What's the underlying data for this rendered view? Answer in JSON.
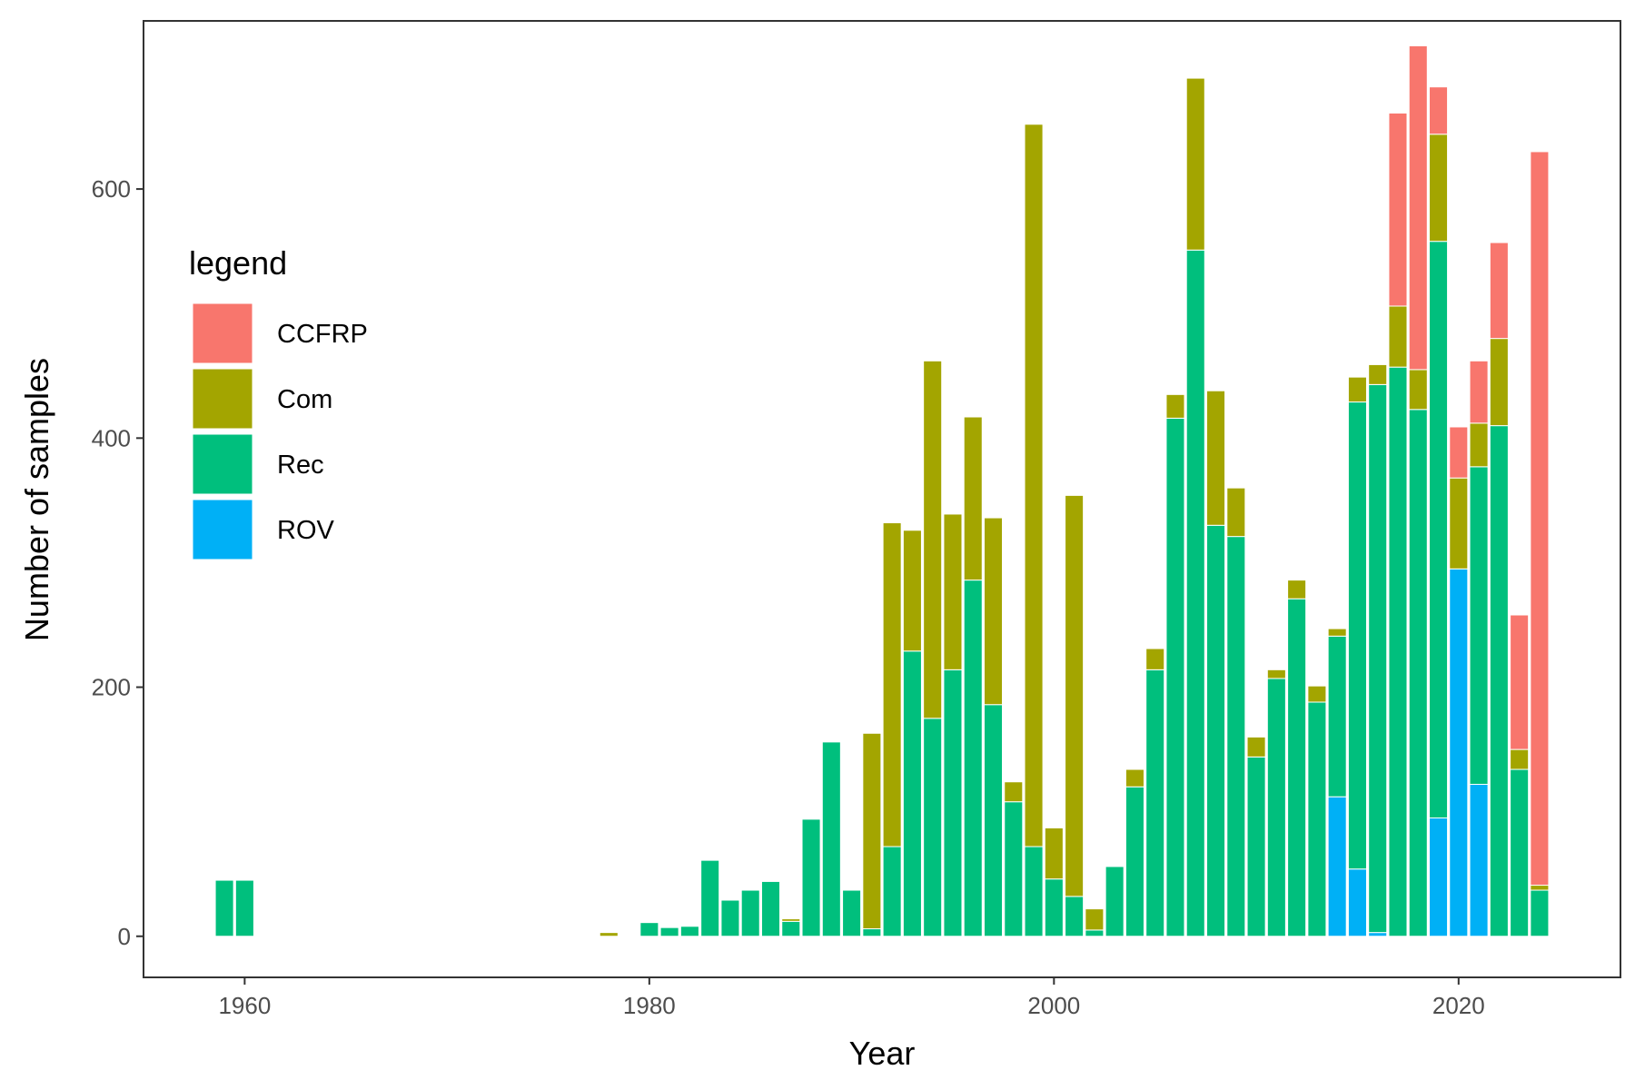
{
  "chart_data": {
    "type": "bar",
    "stacked": true,
    "xlabel": "Year",
    "ylabel": "Number of samples",
    "xlim": [
      1955,
      2028
    ],
    "ylim": [
      -33,
      735
    ],
    "x_ticks": [
      1960,
      1980,
      2000,
      2020
    ],
    "y_ticks": [
      0,
      200,
      400,
      600
    ],
    "grid": false,
    "legend": {
      "title": "legend",
      "position": "left-inside"
    },
    "series": [
      {
        "name": "ROV",
        "color": "#00B0F6",
        "points": [
          [
            2014,
            112
          ],
          [
            2015,
            54
          ],
          [
            2016,
            3
          ],
          [
            2019,
            95
          ],
          [
            2020,
            295
          ],
          [
            2021,
            122
          ]
        ]
      },
      {
        "name": "Rec",
        "color": "#00BF7D",
        "points": [
          [
            1959,
            45
          ],
          [
            1960,
            45
          ],
          [
            1980,
            11
          ],
          [
            1981,
            7
          ],
          [
            1982,
            8
          ],
          [
            1983,
            61
          ],
          [
            1984,
            29
          ],
          [
            1985,
            37
          ],
          [
            1986,
            44
          ],
          [
            1987,
            12
          ],
          [
            1988,
            94
          ],
          [
            1989,
            156
          ],
          [
            1990,
            37
          ],
          [
            1991,
            6
          ],
          [
            1992,
            72
          ],
          [
            1993,
            229
          ],
          [
            1994,
            175
          ],
          [
            1995,
            214
          ],
          [
            1996,
            286
          ],
          [
            1997,
            186
          ],
          [
            1998,
            108
          ],
          [
            1999,
            72
          ],
          [
            2000,
            46
          ],
          [
            2001,
            32
          ],
          [
            2002,
            5
          ],
          [
            2003,
            56
          ],
          [
            2004,
            120
          ],
          [
            2005,
            214
          ],
          [
            2006,
            416
          ],
          [
            2007,
            551
          ],
          [
            2008,
            330
          ],
          [
            2009,
            321
          ],
          [
            2010,
            144
          ],
          [
            2011,
            207
          ],
          [
            2012,
            271
          ],
          [
            2013,
            188
          ],
          [
            2014,
            129
          ],
          [
            2015,
            375
          ],
          [
            2016,
            440
          ],
          [
            2017,
            457
          ],
          [
            2018,
            423
          ],
          [
            2019,
            463
          ],
          [
            2020,
            0
          ],
          [
            2021,
            255
          ],
          [
            2022,
            410
          ],
          [
            2023,
            134
          ],
          [
            2024,
            37
          ]
        ]
      },
      {
        "name": "Com",
        "color": "#A3A500",
        "points": [
          [
            1978,
            3
          ],
          [
            1987,
            2
          ],
          [
            1991,
            157
          ],
          [
            1992,
            260
          ],
          [
            1993,
            97
          ],
          [
            1994,
            287
          ],
          [
            1995,
            125
          ],
          [
            1996,
            131
          ],
          [
            1997,
            150
          ],
          [
            1998,
            16
          ],
          [
            1999,
            580
          ],
          [
            2000,
            41
          ],
          [
            2001,
            322
          ],
          [
            2002,
            17
          ],
          [
            2004,
            14
          ],
          [
            2005,
            17
          ],
          [
            2006,
            19
          ],
          [
            2007,
            138
          ],
          [
            2008,
            108
          ],
          [
            2009,
            39
          ],
          [
            2010,
            16
          ],
          [
            2011,
            7
          ],
          [
            2012,
            15
          ],
          [
            2013,
            13
          ],
          [
            2014,
            6
          ],
          [
            2015,
            20
          ],
          [
            2016,
            16
          ],
          [
            2017,
            49
          ],
          [
            2018,
            32
          ],
          [
            2019,
            86
          ],
          [
            2020,
            73
          ],
          [
            2021,
            35
          ],
          [
            2022,
            70
          ],
          [
            2023,
            16
          ],
          [
            2024,
            4
          ]
        ]
      },
      {
        "name": "CCFRP",
        "color": "#F8766D",
        "points": [
          [
            2017,
            155
          ],
          [
            2018,
            260
          ],
          [
            2019,
            38
          ],
          [
            2020,
            41
          ],
          [
            2021,
            50
          ],
          [
            2022,
            77
          ],
          [
            2023,
            108
          ],
          [
            2024,
            589
          ]
        ]
      }
    ]
  }
}
